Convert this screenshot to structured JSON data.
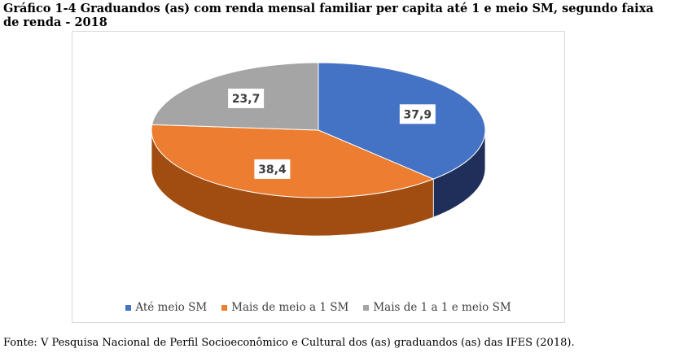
{
  "figure_title": "Gráfico 1-4 Graduandos (as) com renda mensal familiar per capita até 1 e meio SM, segundo faixa de renda - 2018",
  "source_note": "Fonte: V Pesquisa Nacional de Perfil Socioeconômico e Cultural dos (as) graduandos (as) das IFES (2018).",
  "chart_data": {
    "type": "pie",
    "style": "3d",
    "legend_position": "bottom",
    "slices": [
      {
        "label": "Até meio SM",
        "value": 37.9,
        "value_label": "37,9",
        "color": "#4472c4",
        "side_color": "#1f2f5a"
      },
      {
        "label": "Mais de meio a 1 SM",
        "value": 38.4,
        "value_label": "38,4",
        "color": "#ed7d31",
        "side_color": "#a14d12"
      },
      {
        "label": "Mais de 1 a 1 e meio SM",
        "value": 23.7,
        "value_label": "23,7",
        "color": "#a5a5a5",
        "side_color": "#6e6e6e"
      }
    ]
  }
}
